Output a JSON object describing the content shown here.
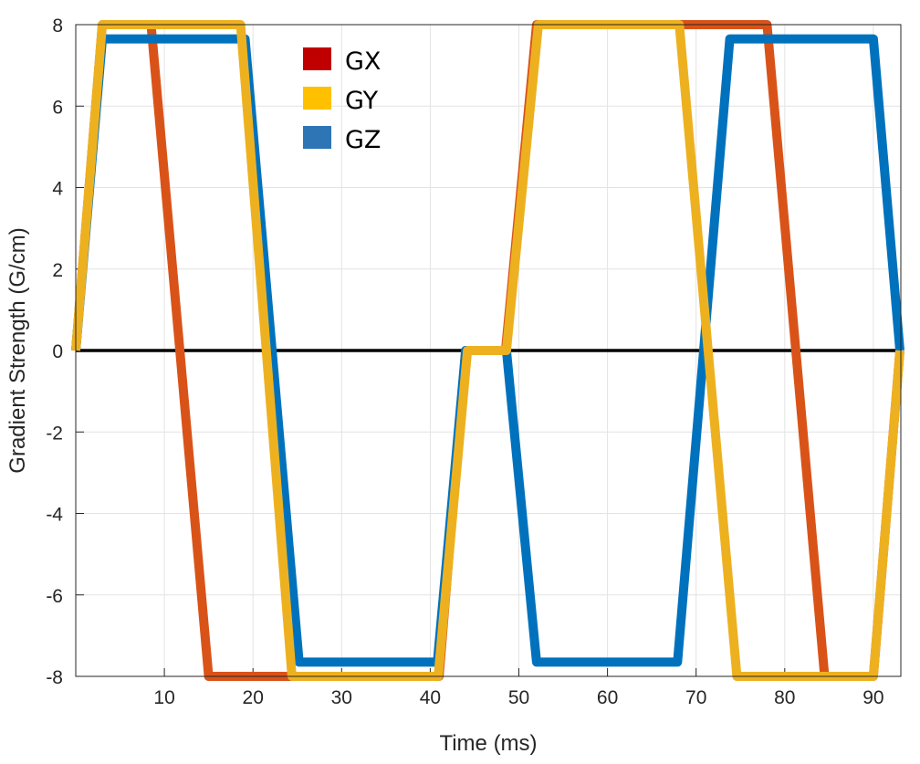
{
  "chart_data": {
    "type": "line",
    "title": "",
    "xlabel": "Time (ms)",
    "ylabel": "Gradient Strength (G/cm)",
    "xlim": [
      0,
      93.1
    ],
    "ylim": [
      -8,
      8
    ],
    "xticks": [
      10,
      20,
      30,
      40,
      50,
      60,
      70,
      80,
      90
    ],
    "yticks": [
      -8,
      -6,
      -4,
      -2,
      0,
      2,
      4,
      6,
      8
    ],
    "grid": true,
    "legend_placement": "top-center",
    "zero_line": true,
    "series": [
      {
        "name": "GX",
        "line_color": "#D95319",
        "legend_color": "#C00000",
        "points": [
          [
            0,
            0
          ],
          [
            3,
            8
          ],
          [
            8.5,
            8
          ],
          [
            15,
            -8
          ],
          [
            41,
            -8
          ],
          [
            44,
            0
          ],
          [
            48.5,
            0
          ],
          [
            52,
            8
          ],
          [
            78,
            8
          ],
          [
            84.5,
            -8
          ],
          [
            90,
            -8
          ],
          [
            93,
            0
          ]
        ]
      },
      {
        "name": "GZ",
        "line_color": "#0072BD",
        "legend_color": "#2E75B6",
        "points": [
          [
            0,
            0
          ],
          [
            3,
            7.65
          ],
          [
            19.1,
            7.65
          ],
          [
            25.2,
            -7.65
          ],
          [
            40.8,
            -7.65
          ],
          [
            44,
            0
          ],
          [
            48.6,
            0
          ],
          [
            52,
            -7.65
          ],
          [
            67.9,
            -7.65
          ],
          [
            73.8,
            7.65
          ],
          [
            90,
            7.65
          ],
          [
            93,
            0
          ]
        ]
      },
      {
        "name": "GY",
        "line_color": "#EDB120",
        "legend_color": "#FFC000",
        "points": [
          [
            0,
            0
          ],
          [
            3,
            8
          ],
          [
            18.6,
            8
          ],
          [
            24.4,
            -8
          ],
          [
            40.9,
            -8
          ],
          [
            44.2,
            0
          ],
          [
            48.6,
            0
          ],
          [
            52.2,
            8
          ],
          [
            68.1,
            8
          ],
          [
            74.6,
            -8
          ],
          [
            90,
            -8
          ],
          [
            93,
            0
          ]
        ]
      }
    ]
  }
}
